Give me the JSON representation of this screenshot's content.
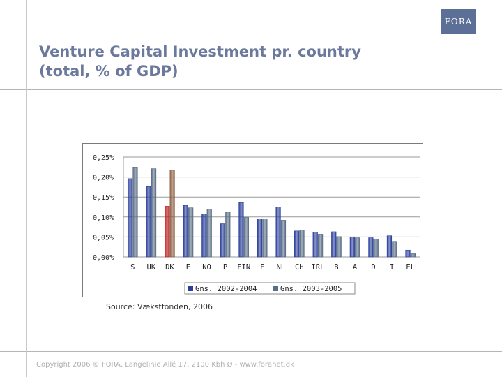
{
  "logo": {
    "text": "FORA"
  },
  "slide": {
    "title_line1": "Venture Capital Investment pr. country",
    "title_line2": "(total, % of GDP)",
    "source": "Source: Vækstfonden, 2006",
    "footer": "Copyright 2006 © FORA, Langelinie Allé 17, 2100 Kbh Ø - www.foranet.dk"
  },
  "chart_data": {
    "type": "bar",
    "categories": [
      "S",
      "UK",
      "DK",
      "E",
      "NO",
      "P",
      "FIN",
      "F",
      "NL",
      "CH",
      "IRL",
      "B",
      "A",
      "D",
      "I",
      "EL"
    ],
    "y_ticks": [
      "0,00%",
      "0,05%",
      "0,10%",
      "0,15%",
      "0,20%",
      "0,25%"
    ],
    "ylim": [
      0,
      0.25
    ],
    "legend_position": "bottom",
    "highlight_category": "DK",
    "series": [
      {
        "name": "Gns. 2002-2004",
        "color": "#2b3f9c",
        "highlight_color": "#c41a1a",
        "values": [
          0.196,
          0.176,
          0.127,
          0.129,
          0.107,
          0.083,
          0.136,
          0.095,
          0.125,
          0.065,
          0.062,
          0.063,
          0.05,
          0.048,
          0.053,
          0.017
        ]
      },
      {
        "name": "Gns. 2003-2005",
        "color": "#5a6e86",
        "highlight_color": "#8e6246",
        "values": [
          0.225,
          0.221,
          0.217,
          0.123,
          0.12,
          0.112,
          0.099,
          0.095,
          0.092,
          0.067,
          0.057,
          0.051,
          0.048,
          0.045,
          0.039,
          0.008
        ]
      }
    ]
  }
}
